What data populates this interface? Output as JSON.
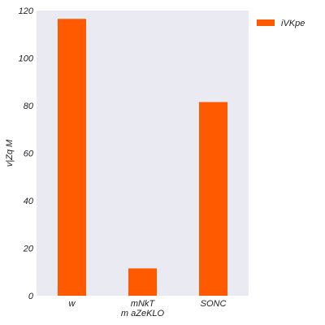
{
  "chart_data": {
    "type": "bar",
    "categories": [
      "w",
      "mNkT",
      "SONC"
    ],
    "series": [
      {
        "name": "iVKpe",
        "values": [
          116.5,
          11.5,
          81.5
        ]
      }
    ],
    "xlabel": "m aZeKLO",
    "ylabel": "v|Zq M",
    "ylim": [
      0,
      120
    ],
    "yticks": [
      0,
      20,
      40,
      60,
      80,
      100,
      120
    ],
    "grid": false,
    "legend": "top-right, outside plot"
  },
  "colors": {
    "bar": "#ff5a00",
    "plot_background": "#eaeaf2"
  }
}
